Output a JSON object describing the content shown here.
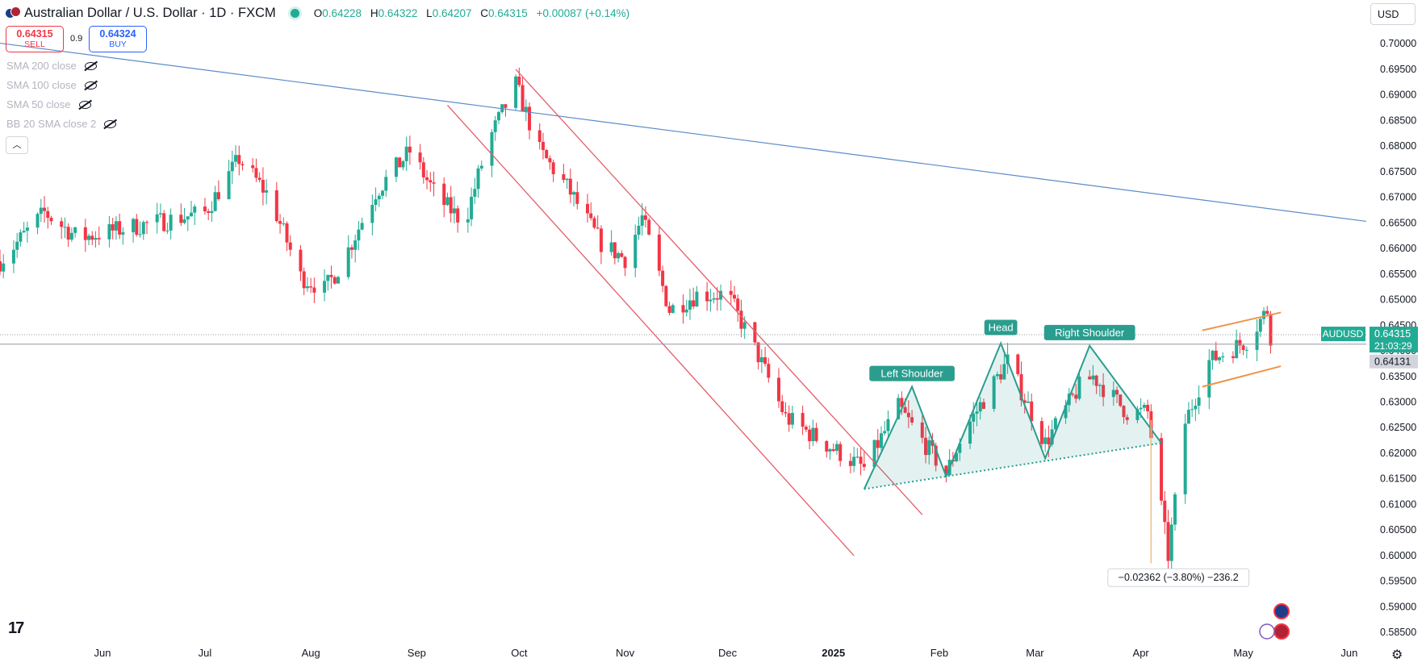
{
  "header": {
    "title": "Australian Dollar / U.S. Dollar · 1D · FXCM",
    "open_label": "O",
    "open": "0.64228",
    "high_label": "H",
    "high": "0.64322",
    "low_label": "L",
    "low": "0.64207",
    "close_label": "C",
    "close": "0.64315",
    "change": "+0.00087 (+0.14%)"
  },
  "trade": {
    "sell_price": "0.64315",
    "sell_label": "SELL",
    "spread": "0.9",
    "buy_price": "0.64324",
    "buy_label": "BUY"
  },
  "indicators": [
    "SMA 200 close",
    "SMA 100 close",
    "SMA 50 close",
    "BB 20 SMA close 2"
  ],
  "currency": "USD",
  "colors": {
    "up": "#22ab94",
    "down": "#f23645",
    "trend": "#5b8cc9",
    "channel": "#e35d6a",
    "flag": "#f0944a",
    "pattern": "#2a9d8f"
  },
  "chart_data": {
    "type": "candlestick",
    "symbol": "AUDUSD",
    "ylim": [
      0.5825,
      0.7035
    ],
    "yticks": [
      "0.70000",
      "0.69500",
      "0.69000",
      "0.68500",
      "0.68000",
      "0.67500",
      "0.67000",
      "0.66500",
      "0.66000",
      "0.65500",
      "0.65000",
      "0.64500",
      "0.64000",
      "0.63500",
      "0.63000",
      "0.62500",
      "0.62000",
      "0.61500",
      "0.61000",
      "0.60500",
      "0.60000",
      "0.59500",
      "0.59000",
      "0.58500"
    ],
    "xticks": [
      {
        "label": "Jun",
        "date": "2024-06-01"
      },
      {
        "label": "Jul",
        "date": "2024-07-01"
      },
      {
        "label": "Aug",
        "date": "2024-08-01"
      },
      {
        "label": "Sep",
        "date": "2024-09-01"
      },
      {
        "label": "Oct",
        "date": "2024-10-01"
      },
      {
        "label": "Nov",
        "date": "2024-11-01"
      },
      {
        "label": "Dec",
        "date": "2024-12-01"
      },
      {
        "label": "2025",
        "date": "2025-01-01",
        "bold": true
      },
      {
        "label": "Feb",
        "date": "2025-02-01"
      },
      {
        "label": "Mar",
        "date": "2025-03-01"
      },
      {
        "label": "Apr",
        "date": "2025-04-01"
      },
      {
        "label": "May",
        "date": "2025-05-01"
      },
      {
        "label": "Jun",
        "date": "2025-06-01"
      }
    ],
    "xlim": [
      "2024-05-02",
      "2025-06-06"
    ],
    "last_price": "0.64315",
    "countdown": "21:03:29",
    "ref_price": "0.64131",
    "ref_line": 0.64131,
    "price_key_points": [
      [
        "2024-05-02",
        0.6575
      ],
      [
        "2024-05-15",
        0.667
      ],
      [
        "2024-05-25",
        0.662
      ],
      [
        "2024-06-08",
        0.664
      ],
      [
        "2024-06-20",
        0.6655
      ],
      [
        "2024-07-01",
        0.667
      ],
      [
        "2024-07-11",
        0.6775
      ],
      [
        "2024-07-20",
        0.67
      ],
      [
        "2024-07-29",
        0.6545
      ],
      [
        "2024-08-05",
        0.652
      ],
      [
        "2024-08-10",
        0.657
      ],
      [
        "2024-08-20",
        0.671
      ],
      [
        "2024-08-30",
        0.679
      ],
      [
        "2024-09-07",
        0.67
      ],
      [
        "2024-09-15",
        0.665
      ],
      [
        "2024-09-22",
        0.681
      ],
      [
        "2024-09-30",
        0.692
      ],
      [
        "2024-10-07",
        0.679
      ],
      [
        "2024-10-15",
        0.672
      ],
      [
        "2024-10-25",
        0.661
      ],
      [
        "2024-11-01",
        0.658
      ],
      [
        "2024-11-06",
        0.666
      ],
      [
        "2024-11-14",
        0.648
      ],
      [
        "2024-11-22",
        0.651
      ],
      [
        "2024-12-01",
        0.651
      ],
      [
        "2024-12-10",
        0.639
      ],
      [
        "2024-12-18",
        0.627
      ],
      [
        "2024-12-27",
        0.623
      ],
      [
        "2025-01-10",
        0.617
      ],
      [
        "2025-01-20",
        0.629
      ],
      [
        "2025-02-03",
        0.616
      ],
      [
        "2025-02-08",
        0.624
      ],
      [
        "2025-02-21",
        0.638
      ],
      [
        "2025-03-04",
        0.622
      ],
      [
        "2025-03-14",
        0.633
      ],
      [
        "2025-03-18",
        0.635
      ],
      [
        "2025-03-28",
        0.628
      ],
      [
        "2025-04-03",
        0.628
      ],
      [
        "2025-04-09",
        0.6
      ],
      [
        "2025-04-14",
        0.626
      ],
      [
        "2025-04-21",
        0.638
      ],
      [
        "2025-05-02",
        0.642
      ],
      [
        "2025-05-08",
        0.648
      ],
      [
        "2025-05-09",
        0.643
      ]
    ],
    "annotations": {
      "left_shoulder_label": "Left Shoulder",
      "head_label": "Head",
      "right_shoulder_label": "Right Shoulder",
      "measure_label": "−0.02362 (−3.80%) −236.2"
    },
    "lines": {
      "long_trend": [
        [
          "2024-05-02",
          0.7001
        ],
        [
          "2025-06-06",
          0.6653
        ]
      ],
      "channel_upper": [
        [
          "2024-09-30",
          0.695
        ],
        [
          "2025-01-27",
          0.608
        ]
      ],
      "channel_lower": [
        [
          "2024-09-10",
          0.688
        ],
        [
          "2025-01-07",
          0.6
        ]
      ],
      "neckline": [
        [
          "2025-01-10",
          0.613
        ],
        [
          "2025-04-07",
          0.622
        ]
      ],
      "hs_path": [
        [
          "2025-01-10",
          0.613
        ],
        [
          "2025-01-24",
          0.633
        ],
        [
          "2025-02-03",
          0.6155
        ],
        [
          "2025-02-19",
          0.6415
        ],
        [
          "2025-03-04",
          0.619
        ],
        [
          "2025-03-17",
          0.641
        ],
        [
          "2025-04-07",
          0.622
        ]
      ],
      "flag_upper": [
        [
          "2025-04-19",
          0.644
        ],
        [
          "2025-05-12",
          0.6475
        ]
      ],
      "flag_lower": [
        [
          "2025-04-19",
          0.633
        ],
        [
          "2025-05-12",
          0.637
        ]
      ],
      "measure_arrow": [
        [
          "2025-04-04",
          0.6265
        ],
        [
          "2025-04-04",
          0.5985
        ]
      ]
    }
  }
}
